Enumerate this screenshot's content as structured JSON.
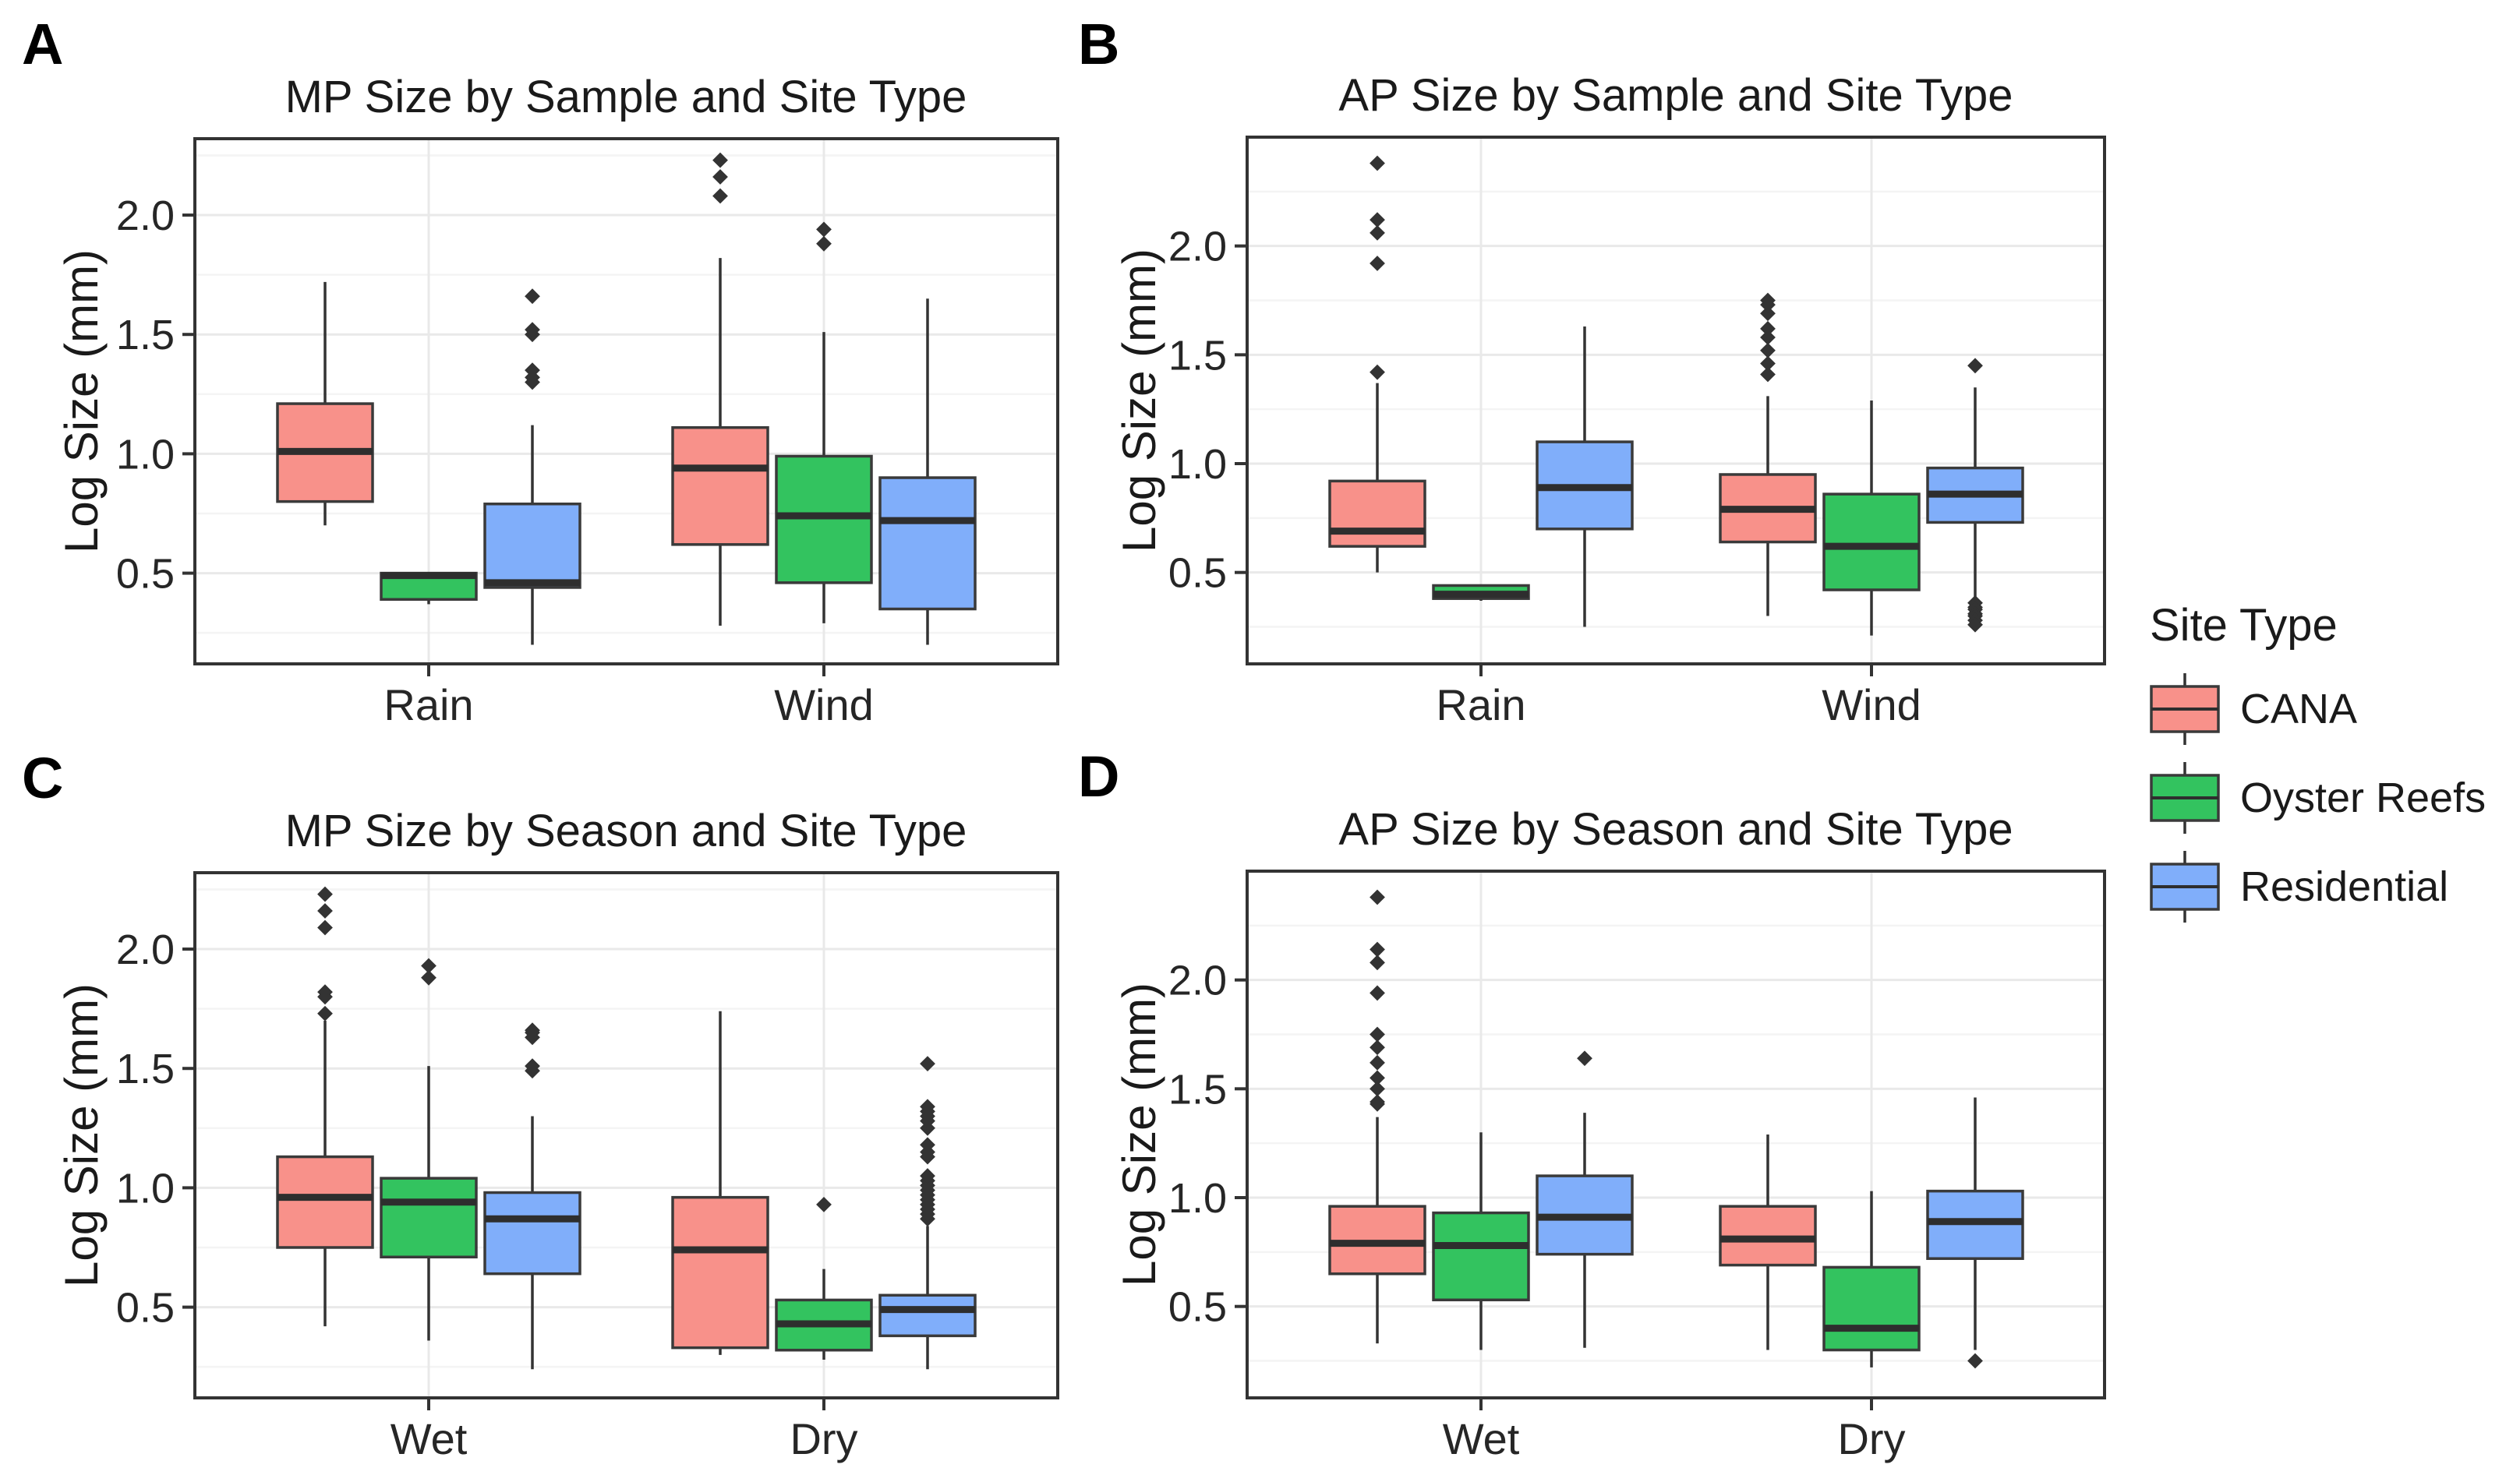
{
  "legend": {
    "title": "Site Type",
    "items": [
      {
        "label": "CANA",
        "color": "#F8918A"
      },
      {
        "label": "Oyster Reefs",
        "color": "#33C35F"
      },
      {
        "label": "Residential",
        "color": "#80AEFA"
      }
    ]
  },
  "style_colors": {
    "box_stroke": "#3A3A3A",
    "median": "#2E2E2E",
    "whisker": "#333333",
    "outlier": "#333333",
    "panel_border": "#333333",
    "grid_major": "#E9E9E9",
    "grid_minor": "#F4F4F4",
    "tick_text": "#262626"
  },
  "chart_data": {
    "type": "boxplot",
    "grid": true,
    "legend_position": "right",
    "panels": [
      {
        "tag": "A",
        "title": "MP Size by Sample and Site Type",
        "ylabel": "Log Size (mm)",
        "ylim": [
          0.12,
          2.32
        ],
        "yticks": [
          0.5,
          1.0,
          1.5,
          2.0
        ],
        "ytick_labels": [
          "0.5",
          "1.0",
          "1.5",
          "2.0"
        ],
        "yticks_minor": [
          0.25,
          0.75,
          1.25,
          1.75,
          2.25
        ],
        "categories": [
          "Rain",
          "Wind"
        ],
        "series": [
          "CANA",
          "Oyster Reefs",
          "Residential"
        ],
        "boxes": [
          {
            "category": "Rain",
            "series": "CANA",
            "whisker_low": 0.7,
            "q1": 0.8,
            "median": 1.01,
            "q3": 1.21,
            "whisker_high": 1.72,
            "outliers": []
          },
          {
            "category": "Rain",
            "series": "Oyster Reefs",
            "whisker_low": 0.37,
            "q1": 0.39,
            "median": 0.49,
            "q3": 0.5,
            "whisker_high": 0.5,
            "outliers": []
          },
          {
            "category": "Rain",
            "series": "Residential",
            "whisker_low": 0.2,
            "q1": 0.44,
            "median": 0.46,
            "q3": 0.79,
            "whisker_high": 1.12,
            "outliers": [
              1.3,
              1.32,
              1.35,
              1.5,
              1.52,
              1.66
            ]
          },
          {
            "category": "Wind",
            "series": "CANA",
            "whisker_low": 0.28,
            "q1": 0.62,
            "median": 0.94,
            "q3": 1.11,
            "whisker_high": 1.82,
            "outliers": [
              2.08,
              2.16,
              2.23
            ]
          },
          {
            "category": "Wind",
            "series": "Oyster Reefs",
            "whisker_low": 0.29,
            "q1": 0.46,
            "median": 0.74,
            "q3": 0.99,
            "whisker_high": 1.51,
            "outliers": [
              1.88,
              1.94
            ]
          },
          {
            "category": "Wind",
            "series": "Residential",
            "whisker_low": 0.2,
            "q1": 0.35,
            "median": 0.72,
            "q3": 0.9,
            "whisker_high": 1.65,
            "outliers": []
          }
        ]
      },
      {
        "tag": "B",
        "title": "AP Size by Sample and Site Type",
        "ylabel": "Log Size (mm)",
        "ylim": [
          0.08,
          2.5
        ],
        "yticks": [
          0.5,
          1.0,
          1.5,
          2.0
        ],
        "ytick_labels": [
          "0.5",
          "1.0",
          "1.5",
          "2.0"
        ],
        "yticks_minor": [
          0.25,
          0.75,
          1.25,
          1.75,
          2.25
        ],
        "categories": [
          "Rain",
          "Wind"
        ],
        "series": [
          "CANA",
          "Oyster Reefs",
          "Residential"
        ],
        "boxes": [
          {
            "category": "Rain",
            "series": "CANA",
            "whisker_low": 0.5,
            "q1": 0.62,
            "median": 0.69,
            "q3": 0.92,
            "whisker_high": 1.37,
            "outliers": [
              1.42,
              1.92,
              2.06,
              2.12,
              2.38
            ]
          },
          {
            "category": "Rain",
            "series": "Oyster Reefs",
            "whisker_low": 0.37,
            "q1": 0.38,
            "median": 0.4,
            "q3": 0.44,
            "whisker_high": 0.44,
            "outliers": []
          },
          {
            "category": "Rain",
            "series": "Residential",
            "whisker_low": 0.25,
            "q1": 0.7,
            "median": 0.89,
            "q3": 1.1,
            "whisker_high": 1.63,
            "outliers": []
          },
          {
            "category": "Wind",
            "series": "CANA",
            "whisker_low": 0.3,
            "q1": 0.64,
            "median": 0.79,
            "q3": 0.95,
            "whisker_high": 1.31,
            "outliers": [
              1.41,
              1.46,
              1.52,
              1.58,
              1.62,
              1.69,
              1.73,
              1.75
            ]
          },
          {
            "category": "Wind",
            "series": "Oyster Reefs",
            "whisker_low": 0.21,
            "q1": 0.42,
            "median": 0.62,
            "q3": 0.86,
            "whisker_high": 1.29,
            "outliers": []
          },
          {
            "category": "Wind",
            "series": "Residential",
            "whisker_low": 0.37,
            "q1": 0.73,
            "median": 0.86,
            "q3": 0.98,
            "whisker_high": 1.35,
            "outliers": [
              1.45,
              0.36,
              0.34,
              0.33,
              0.31,
              0.3,
              0.28,
              0.26
            ]
          }
        ]
      },
      {
        "tag": "C",
        "title": "MP Size by Season and Site Type",
        "ylabel": "Log Size (mm)",
        "ylim": [
          0.12,
          2.32
        ],
        "yticks": [
          0.5,
          1.0,
          1.5,
          2.0
        ],
        "ytick_labels": [
          "0.5",
          "1.0",
          "1.5",
          "2.0"
        ],
        "yticks_minor": [
          0.25,
          0.75,
          1.25,
          1.75,
          2.25
        ],
        "categories": [
          "Wet",
          "Dry"
        ],
        "series": [
          "CANA",
          "Oyster Reefs",
          "Residential"
        ],
        "boxes": [
          {
            "category": "Wet",
            "series": "CANA",
            "whisker_low": 0.42,
            "q1": 0.75,
            "median": 0.96,
            "q3": 1.13,
            "whisker_high": 1.7,
            "outliers": [
              1.73,
              1.8,
              1.82,
              2.09,
              2.16,
              2.23
            ]
          },
          {
            "category": "Wet",
            "series": "Oyster Reefs",
            "whisker_low": 0.36,
            "q1": 0.71,
            "median": 0.94,
            "q3": 1.04,
            "whisker_high": 1.51,
            "outliers": [
              1.88,
              1.93
            ]
          },
          {
            "category": "Wet",
            "series": "Residential",
            "whisker_low": 0.24,
            "q1": 0.64,
            "median": 0.87,
            "q3": 0.98,
            "whisker_high": 1.3,
            "outliers": [
              1.49,
              1.51,
              1.63,
              1.65,
              1.66
            ]
          },
          {
            "category": "Dry",
            "series": "CANA",
            "whisker_low": 0.3,
            "q1": 0.33,
            "median": 0.74,
            "q3": 0.96,
            "whisker_high": 1.74,
            "outliers": []
          },
          {
            "category": "Dry",
            "series": "Oyster Reefs",
            "whisker_low": 0.28,
            "q1": 0.32,
            "median": 0.43,
            "q3": 0.53,
            "whisker_high": 0.66,
            "outliers": [
              0.93
            ]
          },
          {
            "category": "Dry",
            "series": "Residential",
            "whisker_low": 0.24,
            "q1": 0.38,
            "median": 0.49,
            "q3": 0.55,
            "whisker_high": 0.84,
            "outliers": [
              0.87,
              0.89,
              0.91,
              0.93,
              0.95,
              0.97,
              0.99,
              1.01,
              1.03,
              1.05,
              1.13,
              1.15,
              1.18,
              1.25,
              1.28,
              1.3,
              1.32,
              1.34,
              1.52
            ]
          }
        ]
      },
      {
        "tag": "D",
        "title": "AP Size by Season and Site Type",
        "ylabel": "Log Size (mm)",
        "ylim": [
          0.08,
          2.5
        ],
        "yticks": [
          0.5,
          1.0,
          1.5,
          2.0
        ],
        "ytick_labels": [
          "0.5",
          "1.0",
          "1.5",
          "2.0"
        ],
        "yticks_minor": [
          0.25,
          0.75,
          1.25,
          1.75,
          2.25
        ],
        "categories": [
          "Wet",
          "Dry"
        ],
        "series": [
          "CANA",
          "Oyster Reefs",
          "Residential"
        ],
        "boxes": [
          {
            "category": "Wet",
            "series": "CANA",
            "whisker_low": 0.33,
            "q1": 0.65,
            "median": 0.79,
            "q3": 0.96,
            "whisker_high": 1.37,
            "outliers": [
              1.43,
              1.44,
              1.5,
              1.55,
              1.62,
              1.69,
              1.75,
              1.94,
              2.08,
              2.14,
              2.38
            ]
          },
          {
            "category": "Wet",
            "series": "Oyster Reefs",
            "whisker_low": 0.3,
            "q1": 0.53,
            "median": 0.78,
            "q3": 0.93,
            "whisker_high": 1.3,
            "outliers": []
          },
          {
            "category": "Wet",
            "series": "Residential",
            "whisker_low": 0.31,
            "q1": 0.74,
            "median": 0.91,
            "q3": 1.1,
            "whisker_high": 1.39,
            "outliers": [
              1.64
            ]
          },
          {
            "category": "Dry",
            "series": "CANA",
            "whisker_low": 0.3,
            "q1": 0.69,
            "median": 0.81,
            "q3": 0.96,
            "whisker_high": 1.29,
            "outliers": []
          },
          {
            "category": "Dry",
            "series": "Oyster Reefs",
            "whisker_low": 0.22,
            "q1": 0.3,
            "median": 0.4,
            "q3": 0.68,
            "whisker_high": 1.03,
            "outliers": []
          },
          {
            "category": "Dry",
            "series": "Residential",
            "whisker_low": 0.3,
            "q1": 0.72,
            "median": 0.89,
            "q3": 1.03,
            "whisker_high": 1.46,
            "outliers": [
              0.25
            ]
          }
        ]
      }
    ]
  }
}
